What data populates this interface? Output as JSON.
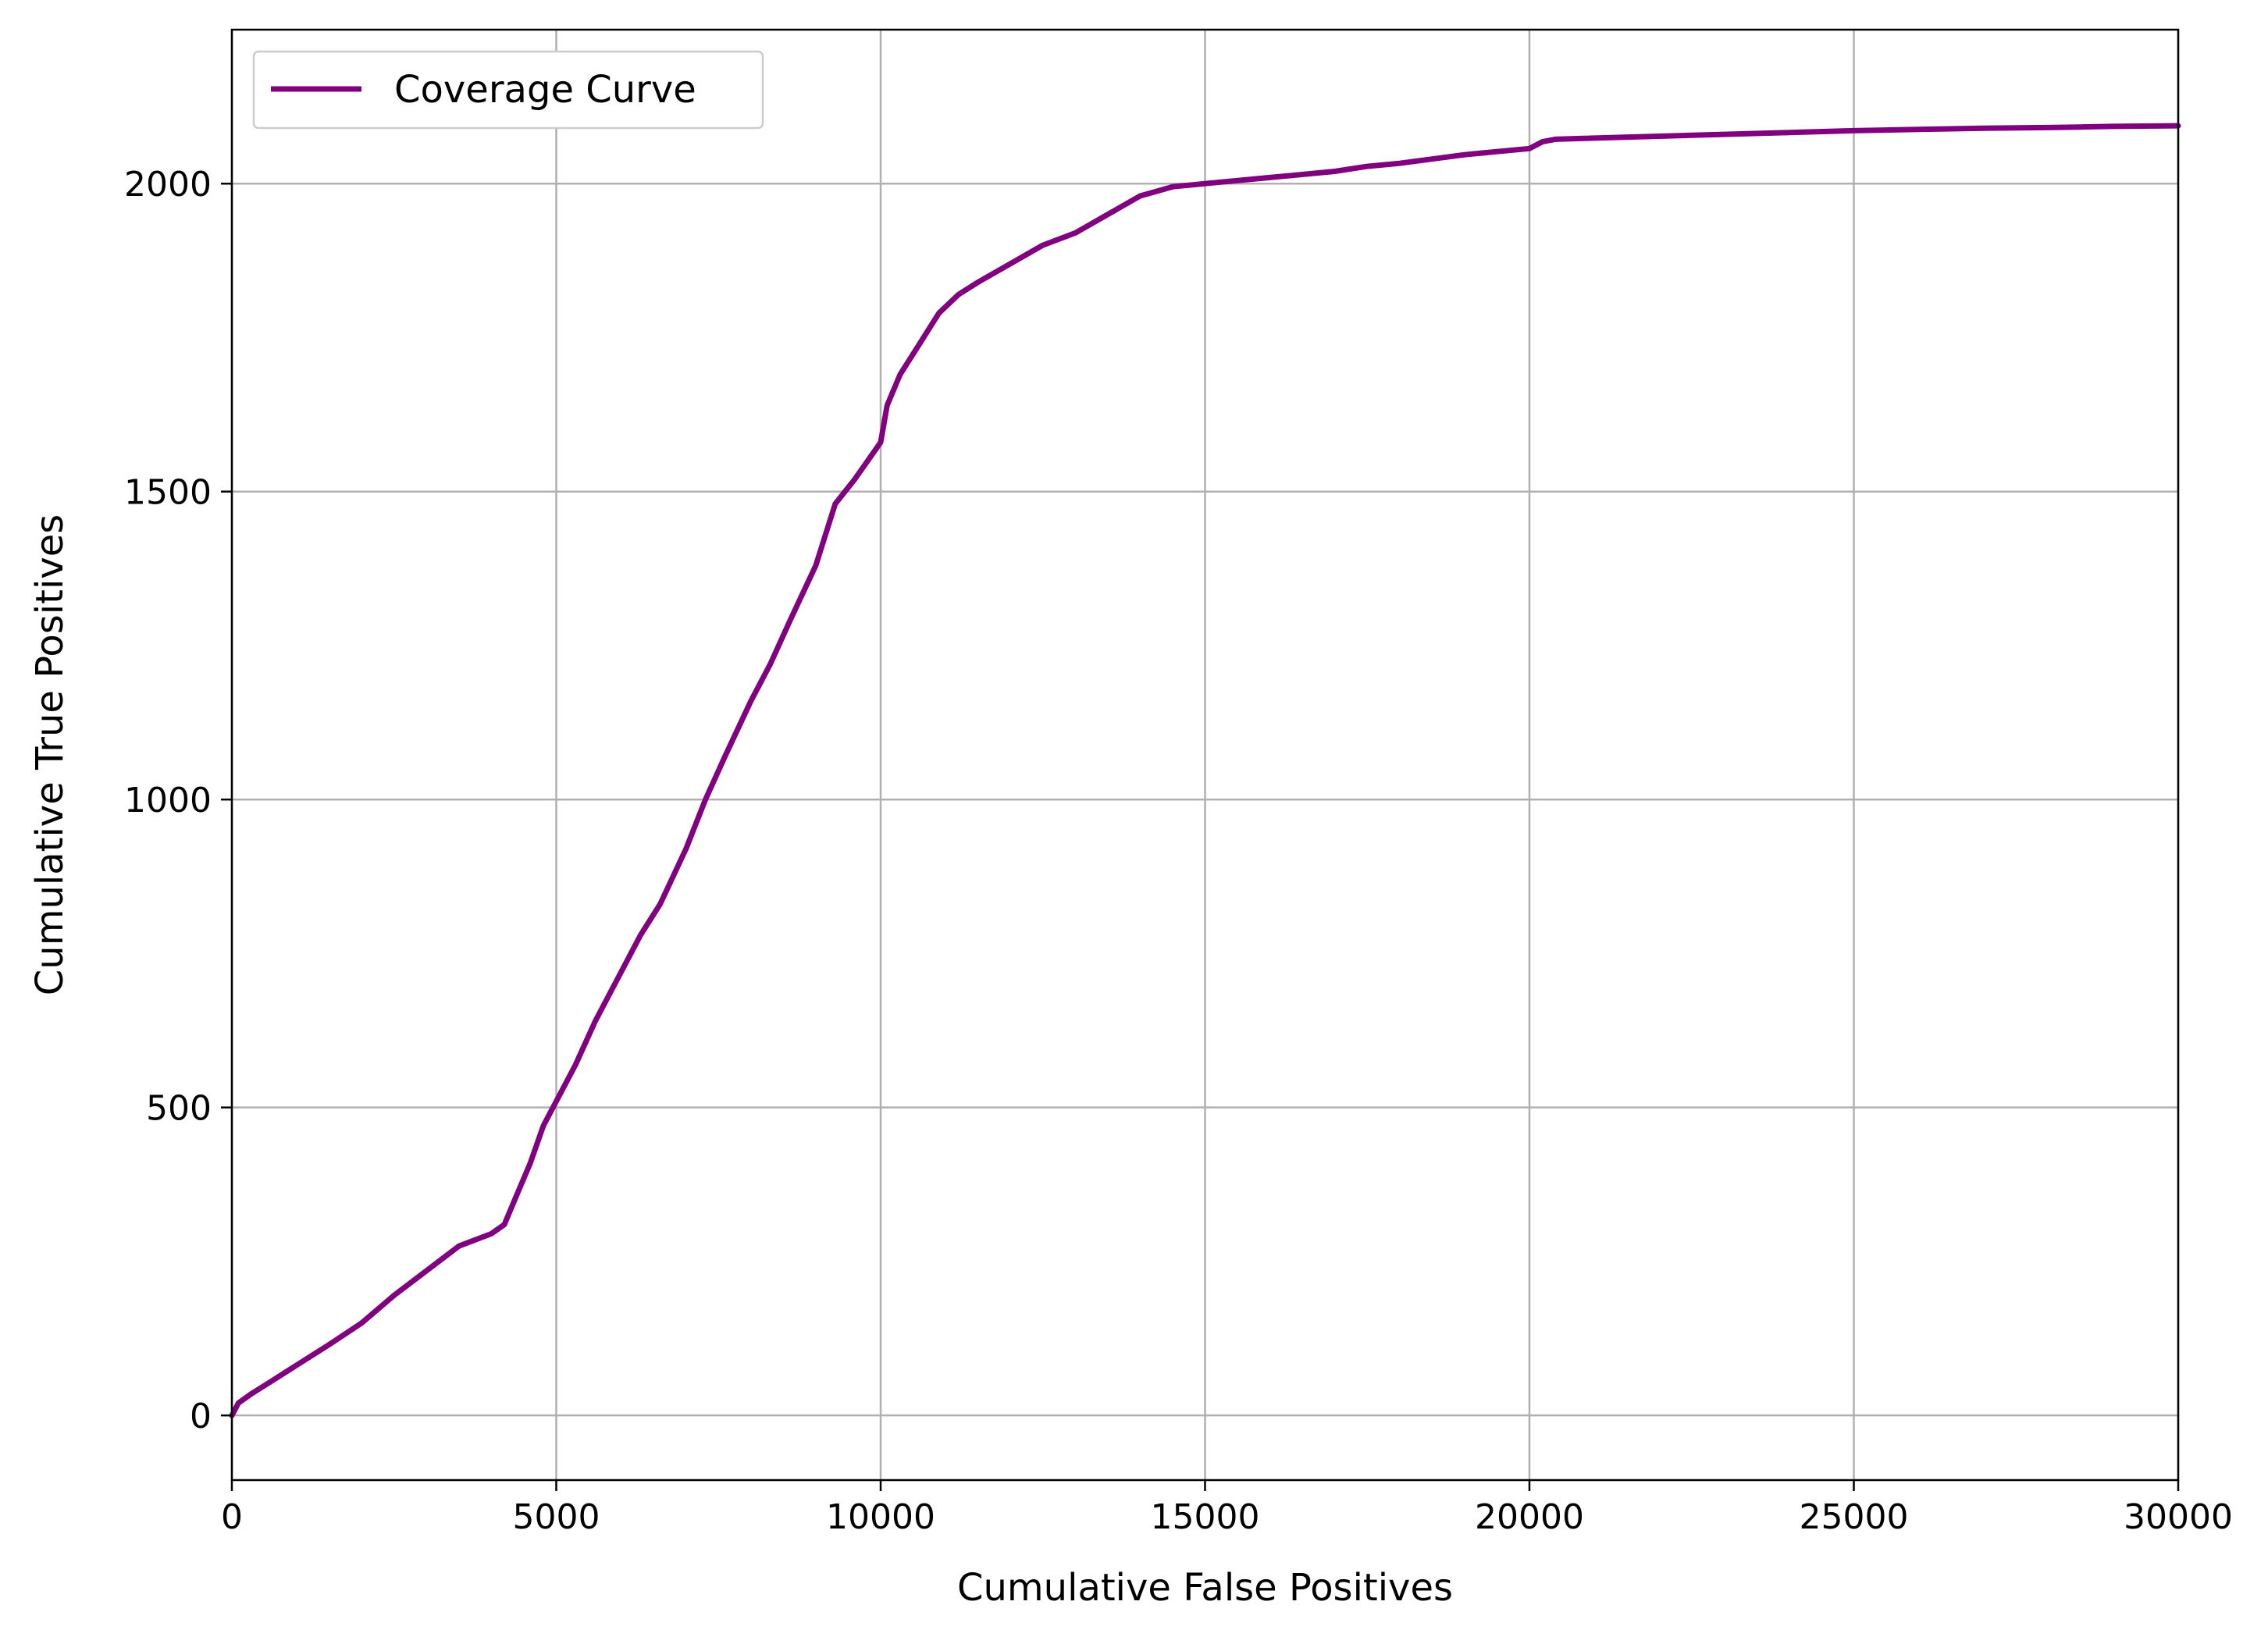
{
  "colors": {
    "line": "#800080",
    "grid": "#b0b0b0",
    "axes": "#000000",
    "legend_border": "#cccccc"
  },
  "chart_data": {
    "type": "line",
    "title": "",
    "xlabel": "Cumulative False Positives",
    "ylabel": "Cumulative True Positives",
    "xlim": [
      0,
      30000
    ],
    "ylim": [
      -105,
      2250
    ],
    "xticks": [
      0,
      5000,
      10000,
      15000,
      20000,
      25000,
      30000
    ],
    "xtick_labels": [
      "0",
      "5000",
      "10000",
      "15000",
      "20000",
      "25000",
      "30000"
    ],
    "yticks": [
      0,
      500,
      1000,
      1500,
      2000
    ],
    "ytick_labels": [
      "0",
      "500",
      "1000",
      "1500",
      "2000"
    ],
    "grid": true,
    "legend": {
      "position": "upper-left",
      "entries": [
        "Coverage Curve"
      ]
    },
    "series": [
      {
        "name": "Coverage Curve",
        "x": [
          0,
          100,
          300,
          600,
          900,
          1200,
          1500,
          2000,
          2500,
          3000,
          3500,
          4000,
          4200,
          4400,
          4600,
          4800,
          5000,
          5300,
          5600,
          6000,
          6300,
          6600,
          7000,
          7300,
          7600,
          8000,
          8300,
          8600,
          9000,
          9300,
          9600,
          9800,
          10000,
          10100,
          10300,
          10600,
          10900,
          11200,
          11500,
          12000,
          12500,
          13000,
          13500,
          14000,
          14500,
          15000,
          16000,
          17000,
          17500,
          18000,
          18500,
          19000,
          19500,
          20000,
          20200,
          20400,
          21000,
          22000,
          23000,
          24000,
          25000,
          26000,
          27000,
          28000,
          28500,
          29000,
          30000
        ],
        "y": [
          0,
          20,
          35,
          55,
          75,
          95,
          115,
          150,
          195,
          235,
          275,
          295,
          310,
          360,
          410,
          470,
          510,
          570,
          640,
          720,
          780,
          830,
          920,
          1000,
          1070,
          1160,
          1220,
          1290,
          1380,
          1480,
          1520,
          1550,
          1580,
          1640,
          1690,
          1740,
          1790,
          1820,
          1840,
          1870,
          1900,
          1920,
          1950,
          1980,
          1995,
          2000,
          2010,
          2020,
          2028,
          2033,
          2040,
          2047,
          2052,
          2057,
          2068,
          2072,
          2074,
          2077,
          2080,
          2083,
          2086,
          2088,
          2090,
          2091,
          2092,
          2093,
          2094
        ]
      }
    ]
  }
}
